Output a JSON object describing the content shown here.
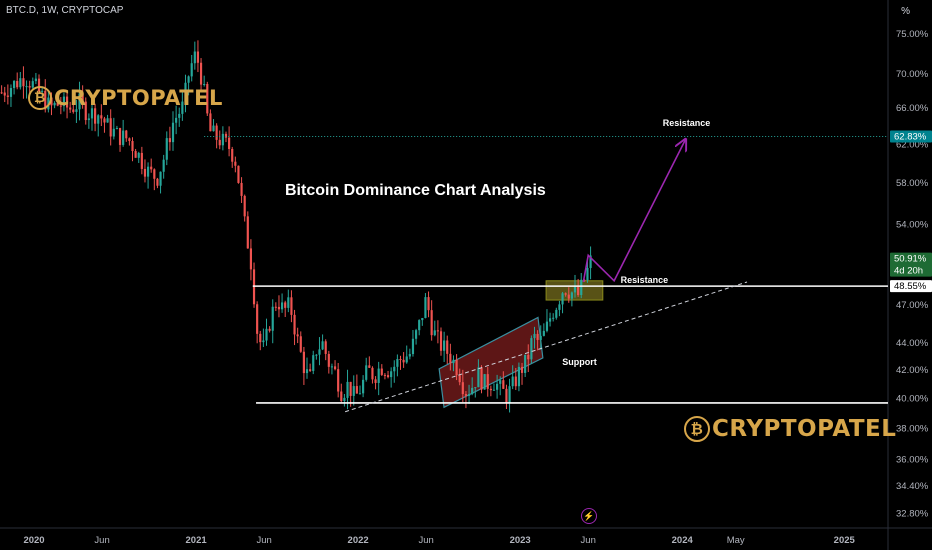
{
  "header": {
    "symbol": "BTC.D, 1W, CRYPTOCAP",
    "axis_unit": "%"
  },
  "branding": {
    "logo_text": "CRYPTOPATEL",
    "logo_mark": "bitcoin-coin-icon"
  },
  "colors": {
    "background": "#000000",
    "up": "#26a69a",
    "down": "#ef5350",
    "projection": "#9c27b0",
    "level_line": "#ffffff",
    "target_line": "#26a69a",
    "logo": "#d7a64a",
    "support_box": "#3a8fa0",
    "breakout_box": "#8a8a1a"
  },
  "chart_data": {
    "type": "candlestick",
    "title": "Bitcoin Dominance Chart Analysis",
    "y_scale": "log",
    "y_ticks": [
      {
        "v": 75.0,
        "label": "75.00%"
      },
      {
        "v": 70.0,
        "label": "70.00%"
      },
      {
        "v": 66.0,
        "label": "66.00%"
      },
      {
        "v": 62.0,
        "label": "62.00%"
      },
      {
        "v": 58.0,
        "label": "58.00%"
      },
      {
        "v": 54.0,
        "label": "54.00%"
      },
      {
        "v": 47.0,
        "label": "47.00%"
      },
      {
        "v": 44.0,
        "label": "44.00%"
      },
      {
        "v": 42.0,
        "label": "42.00%"
      },
      {
        "v": 40.0,
        "label": "40.00%"
      },
      {
        "v": 38.0,
        "label": "38.00%"
      },
      {
        "v": 36.0,
        "label": "36.00%"
      },
      {
        "v": 34.4,
        "label": "34.40%"
      },
      {
        "v": 32.8,
        "label": "32.80%"
      }
    ],
    "price_tags": [
      {
        "value": 62.83,
        "label": "62.83%",
        "style": "target"
      },
      {
        "value": 50.91,
        "label": "50.91%",
        "sub": "4d 20h",
        "style": "current"
      },
      {
        "value": 48.55,
        "label": "48.55%",
        "style": "level"
      }
    ],
    "x_ticks": [
      {
        "t": 2020.0,
        "label": "2020"
      },
      {
        "t": 2020.42,
        "label": "Jun"
      },
      {
        "t": 2021.0,
        "label": "2021"
      },
      {
        "t": 2021.42,
        "label": "Jun"
      },
      {
        "t": 2022.0,
        "label": "2022"
      },
      {
        "t": 2022.42,
        "label": "Jun"
      },
      {
        "t": 2023.0,
        "label": "2023"
      },
      {
        "t": 2023.42,
        "label": "Jun"
      },
      {
        "t": 2024.0,
        "label": "2024"
      },
      {
        "t": 2024.33,
        "label": "May"
      },
      {
        "t": 2025.0,
        "label": "2025"
      }
    ],
    "x_range": [
      2019.79,
      2025.27
    ],
    "y_range": [
      32.0,
      79.5
    ],
    "path_points": [
      [
        2019.8,
        67.8
      ],
      [
        2019.88,
        68.8
      ],
      [
        2019.94,
        69.7
      ],
      [
        2019.98,
        69.0
      ],
      [
        2020.04,
        67.6
      ],
      [
        2020.1,
        66.0
      ],
      [
        2020.16,
        66.5
      ],
      [
        2020.22,
        65.9
      ],
      [
        2020.28,
        66.6
      ],
      [
        2020.33,
        65.5
      ],
      [
        2020.4,
        65.3
      ],
      [
        2020.46,
        63.8
      ],
      [
        2020.52,
        62.9
      ],
      [
        2020.58,
        62.6
      ],
      [
        2020.64,
        61.0
      ],
      [
        2020.7,
        59.2
      ],
      [
        2020.76,
        58.5
      ],
      [
        2020.8,
        60.5
      ],
      [
        2020.86,
        64.5
      ],
      [
        2020.92,
        66.2
      ],
      [
        2020.96,
        70.5
      ],
      [
        2021.0,
        72.5
      ],
      [
        2021.04,
        69.0
      ],
      [
        2021.08,
        63.5
      ],
      [
        2021.12,
        62.8
      ],
      [
        2021.16,
        62.3
      ],
      [
        2021.2,
        61.8
      ],
      [
        2021.24,
        60.5
      ],
      [
        2021.27,
        57.5
      ],
      [
        2021.3,
        54.0
      ],
      [
        2021.34,
        50.5
      ],
      [
        2021.38,
        44.5
      ],
      [
        2021.42,
        43.5
      ],
      [
        2021.46,
        46.0
      ],
      [
        2021.5,
        47.5
      ],
      [
        2021.54,
        46.5
      ],
      [
        2021.58,
        47.0
      ],
      [
        2021.62,
        44.5
      ],
      [
        2021.66,
        42.5
      ],
      [
        2021.7,
        41.2
      ],
      [
        2021.74,
        43.5
      ],
      [
        2021.78,
        44.0
      ],
      [
        2021.82,
        42.5
      ],
      [
        2021.86,
        41.8
      ],
      [
        2021.9,
        40.4
      ],
      [
        2021.94,
        41.0
      ],
      [
        2021.98,
        40.0
      ],
      [
        2022.02,
        40.8
      ],
      [
        2022.06,
        42.0
      ],
      [
        2022.1,
        41.6
      ],
      [
        2022.14,
        42.3
      ],
      [
        2022.2,
        42.0
      ],
      [
        2022.26,
        42.8
      ],
      [
        2022.32,
        43.2
      ],
      [
        2022.38,
        45.5
      ],
      [
        2022.42,
        47.5
      ],
      [
        2022.46,
        45.0
      ],
      [
        2022.5,
        44.0
      ],
      [
        2022.56,
        43.2
      ],
      [
        2022.62,
        42.0
      ],
      [
        2022.66,
        40.5
      ],
      [
        2022.7,
        40.8
      ],
      [
        2022.74,
        41.7
      ],
      [
        2022.78,
        41.0
      ],
      [
        2022.84,
        41.2
      ],
      [
        2022.88,
        40.6
      ],
      [
        2022.92,
        40.2
      ],
      [
        2022.96,
        41.0
      ],
      [
        2023.0,
        42.0
      ],
      [
        2023.04,
        42.6
      ],
      [
        2023.08,
        44.5
      ],
      [
        2023.12,
        44.0
      ],
      [
        2023.16,
        45.0
      ],
      [
        2023.19,
        46.2
      ],
      [
        2023.23,
        47.2
      ],
      [
        2023.27,
        48.5
      ],
      [
        2023.32,
        48.0
      ],
      [
        2023.36,
        47.8
      ],
      [
        2023.4,
        49.2
      ],
      [
        2023.44,
        50.9
      ]
    ],
    "levels": [
      {
        "value": 48.55,
        "x_from": 2021.35,
        "label": "Resistance",
        "label_at": 2023.62
      },
      {
        "value": 39.7,
        "x_from": 2021.37,
        "label": ""
      },
      {
        "value": 62.83,
        "x_from": 2021.05,
        "label": "",
        "dotted": true
      }
    ],
    "trendline": {
      "from": [
        2021.92,
        39.1
      ],
      "to": [
        2024.4,
        48.9
      ],
      "label": "Support",
      "label_at": [
        2023.26,
        43.0
      ]
    },
    "projection": {
      "points": [
        [
          2023.39,
          48.9
        ],
        [
          2023.42,
          51.2
        ],
        [
          2023.58,
          49.0
        ],
        [
          2024.02,
          62.5
        ]
      ],
      "label": "Resistance",
      "label_at": [
        2023.88,
        64.2
      ]
    },
    "channel_box": {
      "corners": [
        [
          2022.53,
          39.4
        ],
        [
          2022.5,
          42.1
        ],
        [
          2023.11,
          46.0
        ],
        [
          2023.14,
          42.9
        ]
      ]
    },
    "breakout_box": {
      "x": [
        2023.16,
        2023.51
      ],
      "y": [
        47.4,
        49.0
      ]
    }
  }
}
